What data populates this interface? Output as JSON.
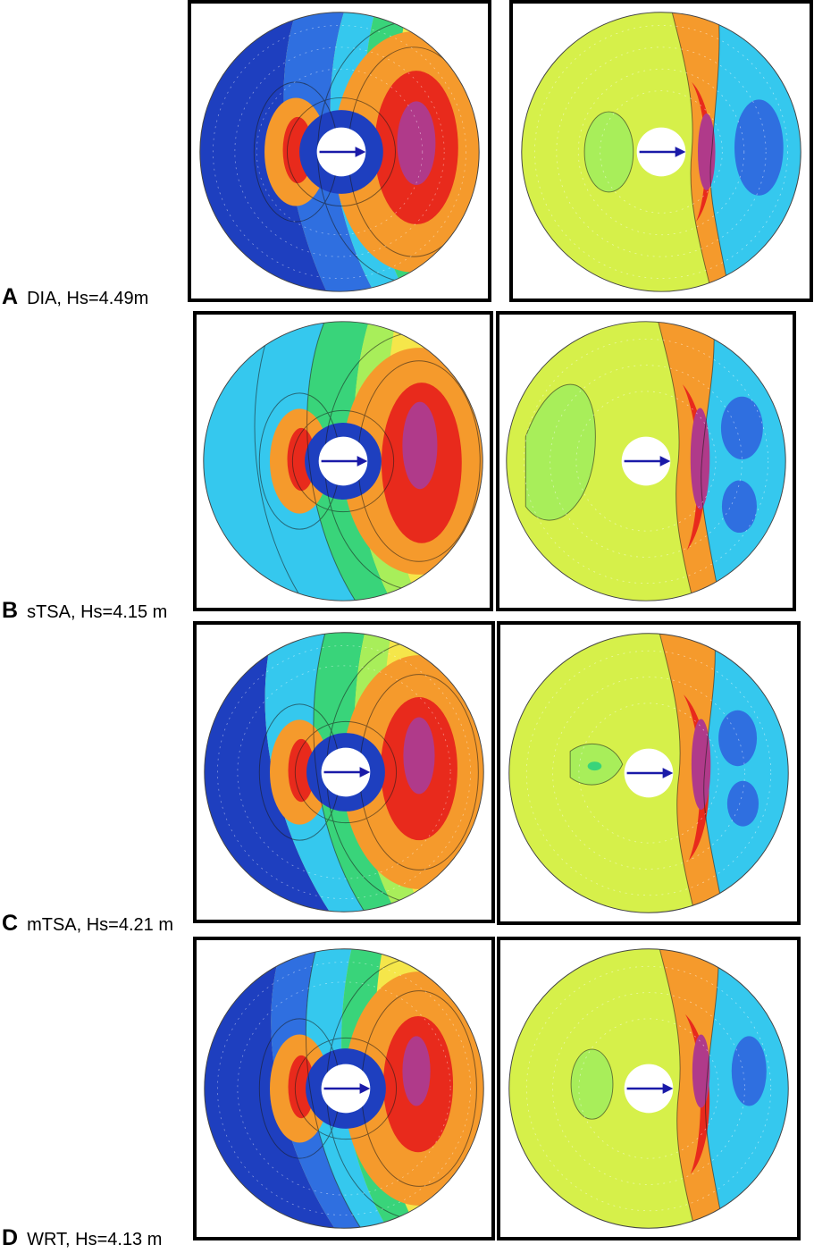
{
  "colors": {
    "deep_blue": "#1e3fbf",
    "blue": "#2f6fe0",
    "cyan": "#35c8ee",
    "green": "#39d47a",
    "light_green": "#a8ee5a",
    "yellow_green": "#d6f04a",
    "yellow": "#f5e64a",
    "orange": "#f59a2c",
    "red": "#e82a1c",
    "magenta": "#b03a8a",
    "arrow": "#1a1aa8"
  },
  "rows": [
    {
      "letter": "A",
      "caption": "DIA, Hs=4.49m"
    },
    {
      "letter": "B",
      "caption": "sTSA, Hs=4.15 m"
    },
    {
      "letter": "C",
      "caption": "mTSA, Hs=4.21 m"
    },
    {
      "letter": "D",
      "caption": "WRT, Hs=4.13 m"
    }
  ]
}
